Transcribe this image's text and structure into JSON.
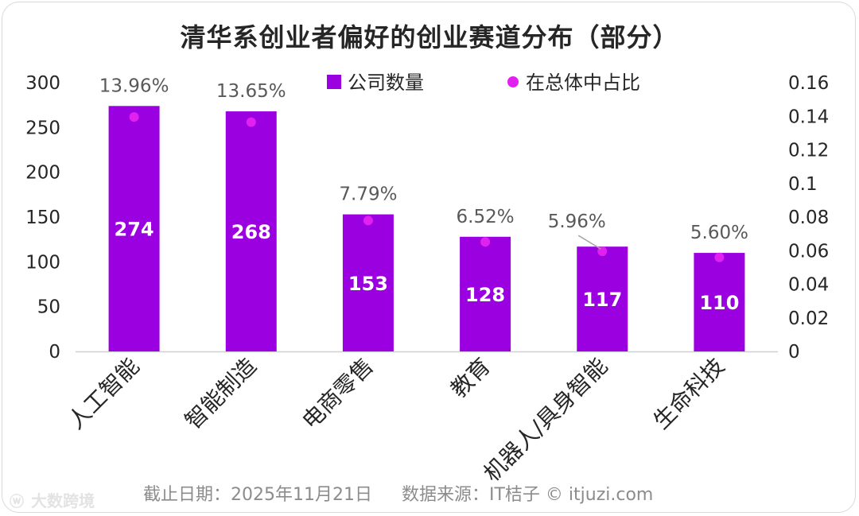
{
  "chart_data": {
    "type": "bar",
    "title": "清华系创业者偏好的创业赛道分布（部分）",
    "categories": [
      "人工智能",
      "智能制造",
      "电商零售",
      "教育",
      "机器人/具身智能",
      "生命科技"
    ],
    "series": [
      {
        "name": "公司数量",
        "axis": "left",
        "type": "bar",
        "values": [
          274,
          268,
          153,
          128,
          117,
          110
        ],
        "value_labels": [
          "274",
          "268",
          "153",
          "128",
          "117",
          "110"
        ]
      },
      {
        "name": "在总体中占比",
        "axis": "right",
        "type": "scatter",
        "values": [
          0.1396,
          0.1365,
          0.0779,
          0.0652,
          0.0596,
          0.056
        ],
        "value_labels": [
          "13.96%",
          "13.65%",
          "7.79%",
          "6.52%",
          "5.96%",
          "5.60%"
        ]
      }
    ],
    "y_left": {
      "min": 0,
      "max": 300,
      "ticks": [
        "0",
        "50",
        "100",
        "150",
        "200",
        "250",
        "300"
      ]
    },
    "y_right": {
      "min": 0,
      "max": 0.16,
      "ticks": [
        "0",
        "0.02",
        "0.04",
        "0.06",
        "0.08",
        "0.1",
        "0.12",
        "0.14",
        "0.16"
      ]
    },
    "legend_position": "top",
    "grid": false
  },
  "colors": {
    "bar": "#9b00e0",
    "marker": "#e021ef",
    "axis_text": "#262626",
    "value_label": "#595959"
  },
  "footer": {
    "date": "截止日期：2025年11月21日",
    "source": "数据来源：IT桔子 © itjuzi.com"
  },
  "watermark": {
    "icon": "weibo-icon",
    "text": "大数跨境"
  }
}
